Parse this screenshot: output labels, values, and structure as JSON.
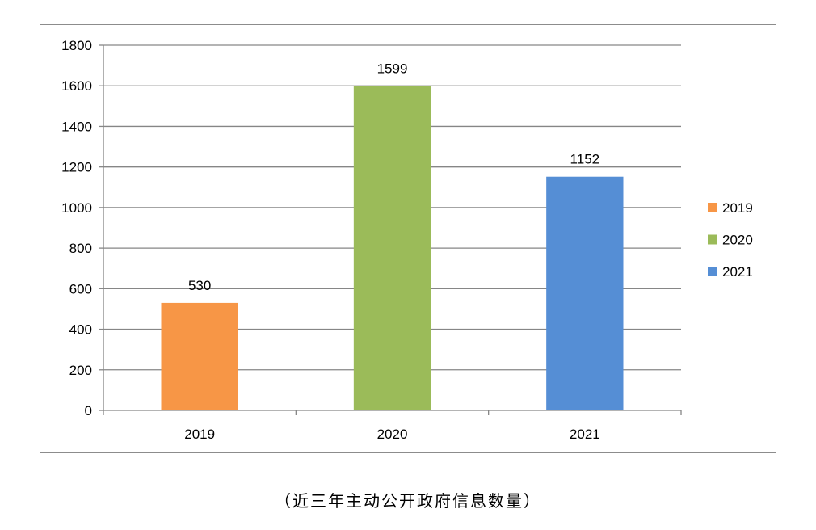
{
  "chart_data": {
    "type": "bar",
    "categories": [
      "2019",
      "2020",
      "2021"
    ],
    "values": [
      530,
      1599,
      1152
    ],
    "colors": [
      "#f79646",
      "#9bbb59",
      "#558ed5"
    ],
    "ylim": [
      0,
      1800
    ],
    "yticks": [
      0,
      200,
      400,
      600,
      800,
      1000,
      1200,
      1400,
      1600,
      1800
    ],
    "grid": true,
    "legend_position": "right",
    "legend": [
      "2019",
      "2020",
      "2021"
    ],
    "data_labels": [
      "530",
      "1599",
      "1152"
    ]
  },
  "caption": "（近三年主动公开政府信息数量）"
}
